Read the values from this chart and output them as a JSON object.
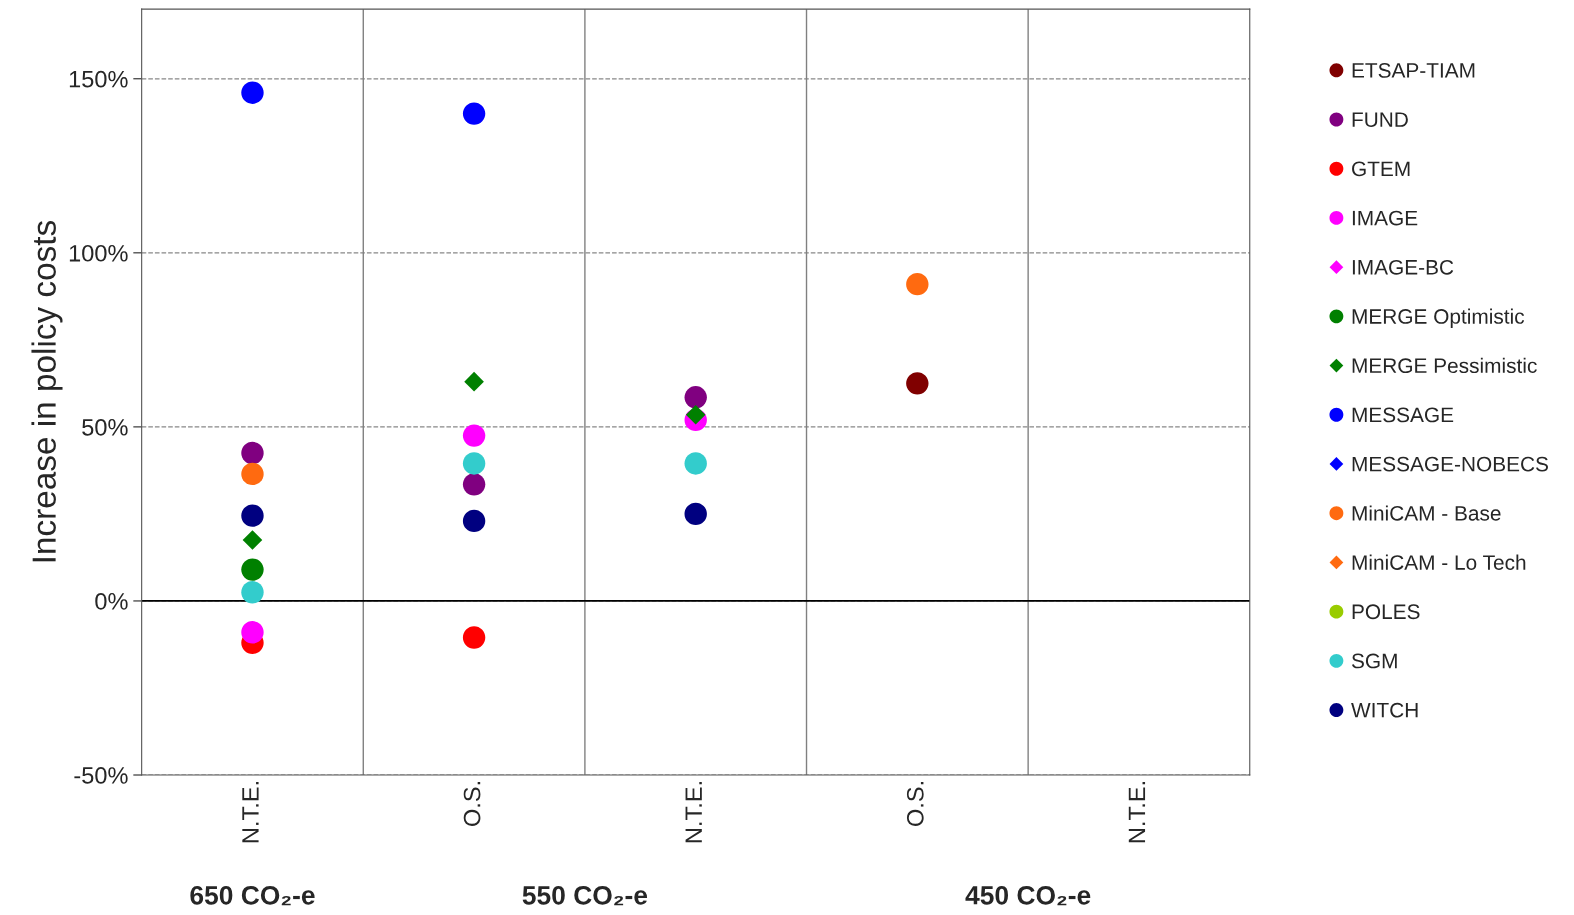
{
  "chart_data": {
    "type": "scatter",
    "ylabel": "Increase in policy costs",
    "categories": [
      "N.T.E.",
      "O.S.",
      "N.T.E.",
      "O.S.",
      "N.T.E."
    ],
    "annotations": [
      "650 CO₂-e",
      "550 CO₂-e",
      "450 CO₂-e"
    ],
    "ylim": [
      -50,
      170
    ],
    "yticks": [
      {
        "value": -50,
        "label": "-50%"
      },
      {
        "value": 0,
        "label": "0%"
      },
      {
        "value": 50,
        "label": "50%"
      },
      {
        "value": 100,
        "label": "100%"
      },
      {
        "value": 150,
        "label": "150%"
      }
    ],
    "grid": "y",
    "legend": "right",
    "ref_lines": [
      {
        "axis": "y",
        "value": 0,
        "color": "#000000",
        "line_style": "solid"
      }
    ],
    "series": [
      {
        "name": "ETSAP-TIAM",
        "color": "#800000",
        "marker": "circle",
        "values": [
          null,
          null,
          null,
          62.5,
          null
        ]
      },
      {
        "name": "FUND",
        "color": "#800080",
        "marker": "circle",
        "values": [
          42.5,
          33.5,
          58.5,
          null,
          null
        ]
      },
      {
        "name": "GTEM",
        "color": "#ff0000",
        "marker": "circle",
        "values": [
          -12,
          -10.5,
          null,
          null,
          null
        ]
      },
      {
        "name": "IMAGE",
        "color": "#ff00ff",
        "marker": "circle",
        "values": [
          -9,
          47.5,
          52,
          null,
          null
        ]
      },
      {
        "name": "IMAGE-BC",
        "color": "#ff00ff",
        "marker": "diamond",
        "values": [
          null,
          null,
          null,
          null,
          null
        ]
      },
      {
        "name": "MERGE Optimistic",
        "color": "#008000",
        "marker": "circle",
        "values": [
          9,
          null,
          null,
          null,
          null
        ]
      },
      {
        "name": "MERGE Pessimistic",
        "color": "#008000",
        "marker": "diamond",
        "values": [
          17.5,
          63,
          53.5,
          null,
          null
        ]
      },
      {
        "name": "MESSAGE",
        "color": "#0000ff",
        "marker": "circle",
        "values": [
          146,
          140,
          null,
          null,
          null
        ]
      },
      {
        "name": "MESSAGE-NOBECS",
        "color": "#0000ff",
        "marker": "diamond",
        "values": [
          null,
          null,
          null,
          null,
          null
        ]
      },
      {
        "name": "MiniCAM - Base",
        "color": "#ff6a10",
        "marker": "circle",
        "values": [
          36.5,
          null,
          null,
          91,
          null
        ]
      },
      {
        "name": "MiniCAM - Lo Tech",
        "color": "#ff6a10",
        "marker": "diamond",
        "values": [
          null,
          null,
          null,
          null,
          null
        ]
      },
      {
        "name": "POLES",
        "color": "#99cc00",
        "marker": "circle",
        "values": [
          null,
          null,
          null,
          null,
          null
        ]
      },
      {
        "name": "SGM",
        "color": "#33cccc",
        "marker": "circle",
        "values": [
          2.5,
          39.5,
          39.5,
          null,
          null
        ]
      },
      {
        "name": "WITCH",
        "color": "#000080",
        "marker": "circle",
        "values": [
          24.5,
          23,
          25,
          null,
          null
        ]
      }
    ]
  }
}
